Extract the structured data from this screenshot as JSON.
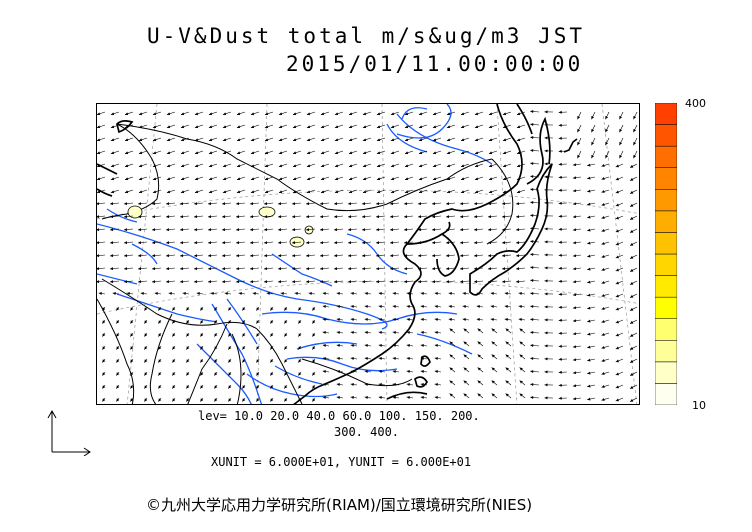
{
  "header": {
    "title_line1": "U-V&Dust total m/s&ug/m3 JST",
    "title_line2": "2015/01/11.00:00:00"
  },
  "colorbar": {
    "max_label": "400",
    "min_label": "10",
    "colors": [
      "#fffff0",
      "#ffffc8",
      "#ffff9a",
      "#ffff70",
      "#ffff00",
      "#ffea00",
      "#ffd600",
      "#ffc200",
      "#ffad00",
      "#ff9900",
      "#ff8400",
      "#ff6e00",
      "#ff5500",
      "#ff4000"
    ]
  },
  "footer": {
    "levels_line1": "lev= 10.0 20.0 40.0 60.0 100. 150. 200.",
    "levels_line2": "300. 400.",
    "units_line": "XUNIT = 6.000E+01, YUNIT = 6.000E+01",
    "credit": "©九州大学応用力学研究所(RIAM)/国立環境研究所(NIES)"
  },
  "map": {
    "coast_color": "#000000",
    "river_color": "#1a5cff",
    "border_color": "#000000",
    "grid_color": "#999999",
    "vector_color": "#000000",
    "dust_fill": "#ffffc8"
  }
}
